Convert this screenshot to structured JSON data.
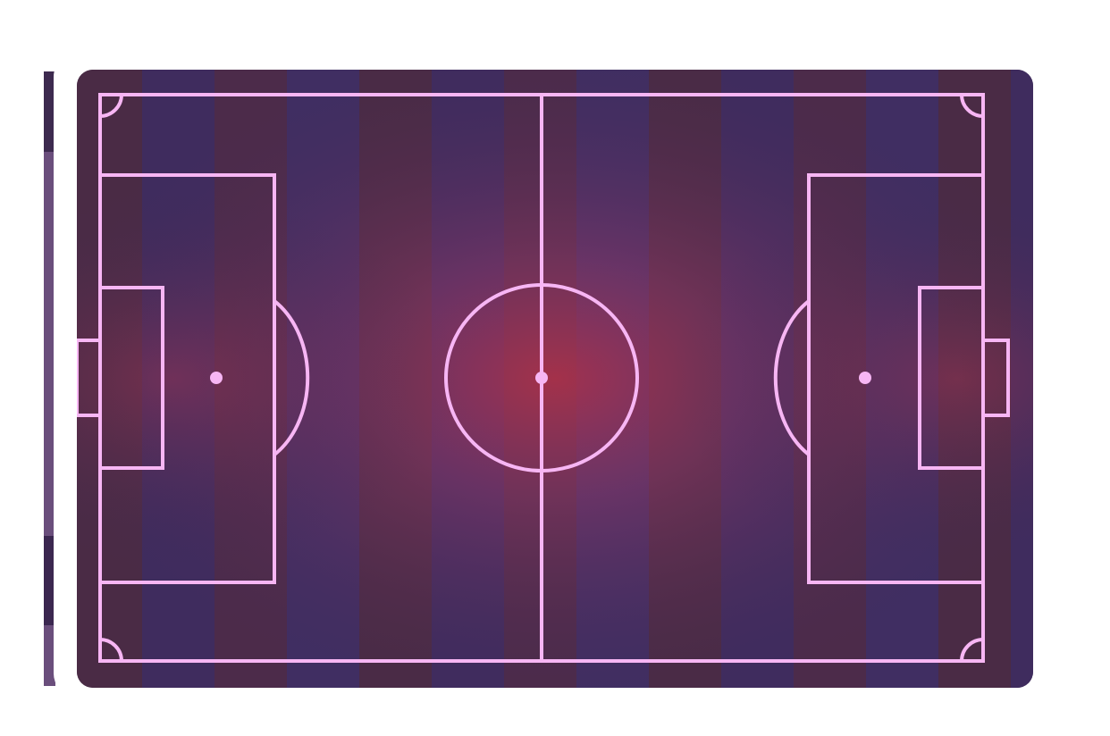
{
  "scene": {
    "name": "soccer-pitch",
    "style": {
      "stripe_colors": [
        "#4a2b45",
        "#3f2c5e",
        "#4c2b4a",
        "#402e62"
      ],
      "glow_color": "#b3324a",
      "line_color": "#f7b6f4",
      "frame_color": "#3a2a47"
    }
  }
}
